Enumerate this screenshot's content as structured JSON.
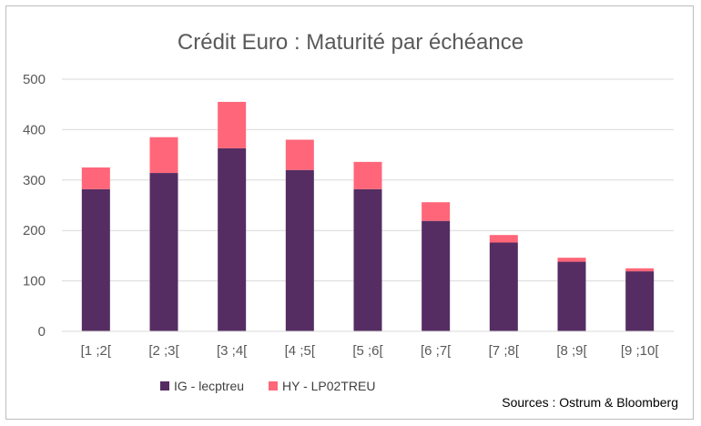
{
  "chart_data": {
    "type": "bar",
    "stacked": true,
    "title": "Crédit Euro : Maturité par échéance",
    "xlabel": "",
    "ylabel": "",
    "ylim": [
      0,
      500
    ],
    "yticks": [
      0,
      100,
      200,
      300,
      400,
      500
    ],
    "grid": true,
    "legend_position": "bottom-left",
    "categories": [
      "[1 ;2[",
      "[2 ;3[",
      "[3 ;4[",
      "[4 ;5[",
      "[5 ;6[",
      "[6 ;7[",
      "[7 ;8[",
      "[8 ;9[",
      "[9 ;10["
    ],
    "series": [
      {
        "name": "IG - lecptreu",
        "color": "#552D62",
        "values": [
          282,
          314,
          363,
          320,
          282,
          219,
          176,
          138,
          119
        ]
      },
      {
        "name": "HY - LP02TREU",
        "color": "#FF6679",
        "values": [
          43,
          71,
          92,
          60,
          54,
          37,
          15,
          8,
          6
        ]
      }
    ],
    "source": "Sources : Ostrum &  Bloomberg"
  }
}
